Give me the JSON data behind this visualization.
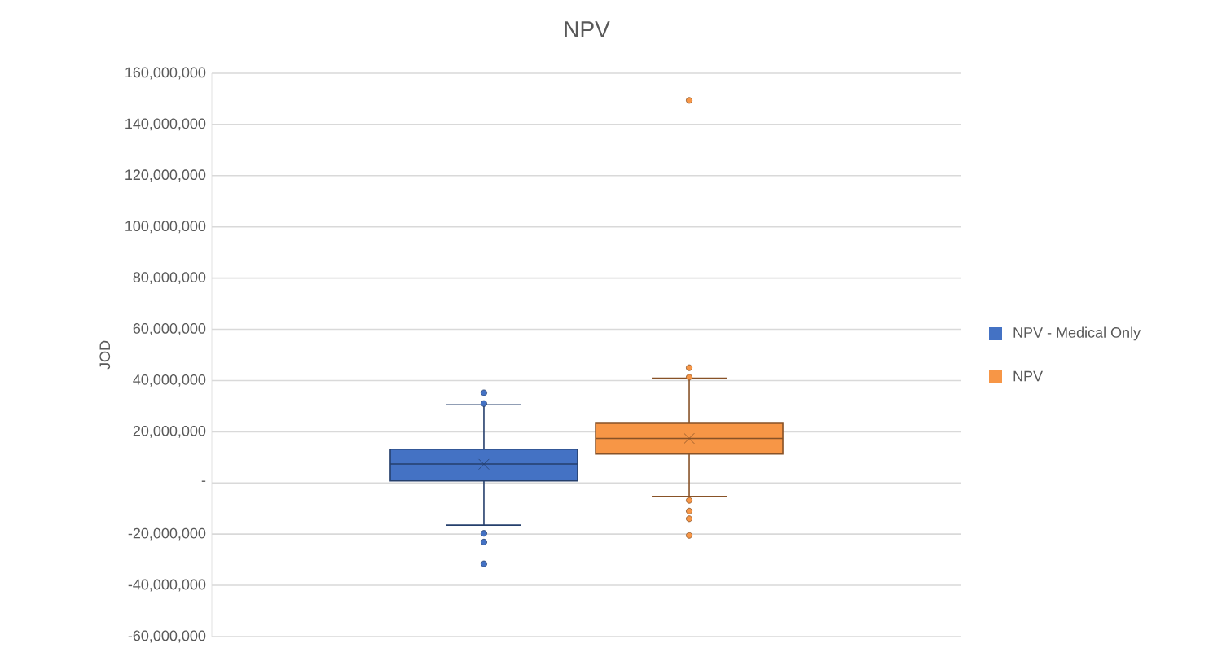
{
  "chart_data": {
    "type": "box",
    "title": "NPV",
    "ylabel": "JOD",
    "categories": [
      null
    ],
    "series": [
      {
        "name": "NPV - Medical Only",
        "color": "#4472c4",
        "boxes": [
          {
            "low": -16500000.0,
            "q1": 800000.0,
            "median": 7400000.0,
            "q3": 13200000.0,
            "high": 30500000.0,
            "mean": 7300000.0,
            "outliers": [
              35200000.0,
              31000000.0,
              -19700000.0,
              -23100000.0,
              -31600000.0
            ]
          }
        ]
      },
      {
        "name": "NPV",
        "color": "#f79646",
        "boxes": [
          {
            "low": -5300000.0,
            "q1": 11300000.0,
            "median": 17400000.0,
            "q3": 23300000.0,
            "high": 40900000.0,
            "mean": 17400000.0,
            "outliers": [
              149400000.0,
              45000000.0,
              41300000.0,
              -6800000.0,
              -11000000.0,
              -14000000.0,
              -20500000.0
            ]
          }
        ]
      }
    ],
    "ylim": [
      -60000000,
      160000000
    ],
    "yticks": [
      {
        "value": -60000000,
        "label": "-60,000,000"
      },
      {
        "value": -40000000,
        "label": "-40,000,000"
      },
      {
        "value": -20000000,
        "label": "-20,000,000"
      },
      {
        "value": 0,
        "label": "-"
      },
      {
        "value": 20000000,
        "label": "20,000,000"
      },
      {
        "value": 40000000,
        "label": "40,000,000"
      },
      {
        "value": 60000000,
        "label": "60,000,000"
      },
      {
        "value": 80000000,
        "label": "80,000,000"
      },
      {
        "value": 100000000,
        "label": "100,000,000"
      },
      {
        "value": 120000000,
        "label": "120,000,000"
      },
      {
        "value": 140000000,
        "label": "140,000,000"
      },
      {
        "value": 160000000,
        "label": "160,000,000"
      }
    ],
    "grid": "y",
    "legend": "right",
    "marker": "circle"
  }
}
